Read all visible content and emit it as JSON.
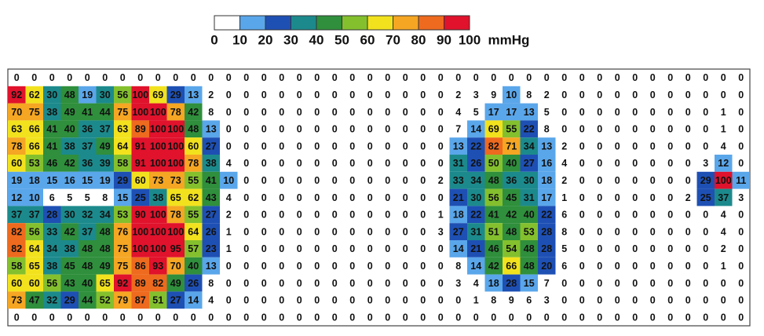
{
  "legend": {
    "ticks": [
      0,
      10,
      20,
      30,
      40,
      50,
      60,
      70,
      80,
      90,
      100
    ],
    "unit": "mmHg",
    "colors": [
      "#ffffff",
      "#5aa6ea",
      "#1e50b4",
      "#1c8a8c",
      "#2f8f3c",
      "#84c02e",
      "#f2e21e",
      "#f5a623",
      "#ee6a1e",
      "#e0122c"
    ]
  },
  "grid": {
    "rows": [
      [
        0,
        0,
        0,
        0,
        0,
        0,
        0,
        0,
        0,
        0,
        0,
        0,
        0,
        0,
        0,
        0,
        0,
        0,
        0,
        0,
        0,
        0,
        0,
        0,
        0,
        0,
        0,
        0,
        0,
        0,
        0,
        0,
        0,
        0,
        0,
        0,
        0,
        0,
        0,
        0,
        0,
        0
      ],
      [
        92,
        62,
        30,
        48,
        19,
        30,
        56,
        100,
        69,
        29,
        13,
        2,
        0,
        0,
        0,
        0,
        0,
        0,
        0,
        0,
        0,
        0,
        0,
        0,
        0,
        2,
        3,
        9,
        10,
        8,
        2,
        0,
        0,
        0,
        0,
        0,
        0,
        0,
        0,
        0,
        0,
        0
      ],
      [
        70,
        75,
        38,
        49,
        41,
        44,
        75,
        100,
        100,
        78,
        42,
        8,
        0,
        0,
        0,
        0,
        0,
        0,
        0,
        0,
        0,
        0,
        0,
        0,
        0,
        4,
        5,
        17,
        17,
        13,
        5,
        0,
        0,
        0,
        0,
        0,
        0,
        0,
        0,
        0,
        1,
        0
      ],
      [
        63,
        66,
        41,
        40,
        36,
        37,
        63,
        89,
        100,
        100,
        48,
        13,
        0,
        0,
        0,
        0,
        0,
        0,
        0,
        0,
        0,
        0,
        0,
        0,
        0,
        7,
        14,
        69,
        55,
        22,
        8,
        0,
        0,
        0,
        0,
        0,
        0,
        0,
        0,
        0,
        1,
        0
      ],
      [
        78,
        66,
        41,
        38,
        37,
        49,
        64,
        91,
        100,
        100,
        60,
        27,
        0,
        0,
        0,
        0,
        0,
        0,
        0,
        0,
        0,
        0,
        0,
        0,
        0,
        13,
        22,
        82,
        71,
        34,
        13,
        2,
        0,
        0,
        0,
        0,
        0,
        0,
        0,
        0,
        4,
        0
      ],
      [
        60,
        53,
        46,
        42,
        36,
        39,
        58,
        91,
        100,
        100,
        78,
        38,
        4,
        0,
        0,
        0,
        0,
        0,
        0,
        0,
        0,
        0,
        0,
        0,
        0,
        31,
        26,
        50,
        40,
        27,
        16,
        4,
        0,
        0,
        0,
        0,
        0,
        0,
        0,
        3,
        12,
        0
      ],
      [
        19,
        18,
        15,
        16,
        15,
        19,
        29,
        60,
        73,
        73,
        55,
        41,
        10,
        0,
        0,
        0,
        0,
        0,
        0,
        0,
        0,
        0,
        0,
        0,
        2,
        33,
        34,
        48,
        36,
        30,
        18,
        2,
        0,
        0,
        0,
        0,
        0,
        0,
        0,
        29,
        100,
        11
      ],
      [
        12,
        10,
        6,
        5,
        5,
        8,
        15,
        25,
        38,
        65,
        62,
        43,
        4,
        0,
        0,
        0,
        0,
        0,
        0,
        0,
        0,
        0,
        0,
        0,
        0,
        21,
        30,
        56,
        45,
        31,
        17,
        1,
        0,
        0,
        0,
        0,
        0,
        0,
        2,
        25,
        37,
        3
      ],
      [
        37,
        37,
        28,
        30,
        32,
        34,
        53,
        90,
        100,
        78,
        55,
        27,
        2,
        0,
        0,
        0,
        0,
        0,
        0,
        0,
        0,
        0,
        0,
        0,
        1,
        18,
        22,
        41,
        42,
        40,
        22,
        6,
        0,
        0,
        0,
        0,
        0,
        0,
        0,
        0,
        4,
        0
      ],
      [
        82,
        56,
        33,
        42,
        37,
        48,
        76,
        100,
        100,
        100,
        64,
        26,
        1,
        0,
        0,
        0,
        0,
        0,
        0,
        0,
        0,
        0,
        0,
        0,
        3,
        27,
        31,
        51,
        48,
        53,
        28,
        8,
        0,
        0,
        0,
        0,
        0,
        0,
        0,
        0,
        4,
        0
      ],
      [
        82,
        64,
        34,
        38,
        48,
        48,
        75,
        100,
        100,
        95,
        57,
        23,
        1,
        0,
        0,
        0,
        0,
        0,
        0,
        0,
        0,
        0,
        0,
        0,
        0,
        14,
        21,
        46,
        54,
        48,
        28,
        5,
        0,
        0,
        0,
        0,
        0,
        0,
        0,
        0,
        2,
        0
      ],
      [
        58,
        65,
        38,
        45,
        48,
        49,
        75,
        86,
        93,
        70,
        40,
        13,
        0,
        0,
        0,
        0,
        0,
        0,
        0,
        0,
        0,
        0,
        0,
        0,
        0,
        8,
        14,
        42,
        66,
        48,
        20,
        6,
        0,
        0,
        0,
        0,
        0,
        0,
        0,
        0,
        1,
        0
      ],
      [
        60,
        60,
        56,
        43,
        40,
        65,
        92,
        89,
        82,
        49,
        26,
        8,
        0,
        0,
        0,
        0,
        0,
        0,
        0,
        0,
        0,
        0,
        0,
        0,
        0,
        3,
        4,
        18,
        28,
        15,
        7,
        0,
        0,
        0,
        0,
        0,
        0,
        0,
        0,
        0,
        0,
        0
      ],
      [
        73,
        47,
        32,
        29,
        44,
        52,
        79,
        87,
        51,
        27,
        14,
        4,
        0,
        0,
        0,
        0,
        0,
        0,
        0,
        0,
        0,
        0,
        0,
        0,
        0,
        0,
        1,
        8,
        9,
        6,
        3,
        0,
        0,
        0,
        0,
        0,
        0,
        0,
        0,
        0,
        0,
        0
      ],
      [
        0,
        0,
        0,
        0,
        0,
        0,
        0,
        0,
        0,
        0,
        0,
        0,
        0,
        0,
        0,
        0,
        0,
        0,
        0,
        0,
        0,
        0,
        0,
        0,
        0,
        0,
        0,
        0,
        0,
        0,
        0,
        0,
        0,
        0,
        0,
        0,
        0,
        0,
        0,
        0,
        0,
        0
      ]
    ]
  }
}
